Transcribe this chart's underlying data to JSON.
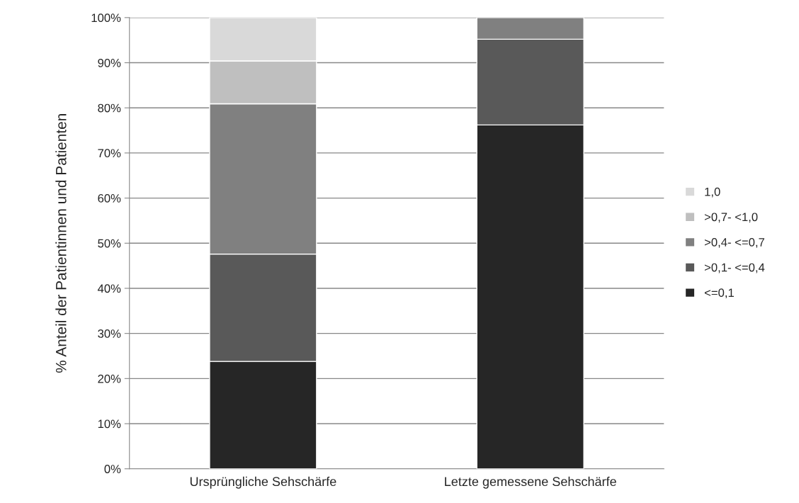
{
  "chart_data": {
    "type": "bar",
    "stacked": true,
    "ylabel": "% Anteil der Patientinnen und Patienten",
    "categories": [
      "Ursprüngliche Sehschärfe",
      "Letzte gemessene Sehschärfe"
    ],
    "series": [
      {
        "name": "<=0,1",
        "color": "#262626",
        "values": [
          23.8,
          76.2
        ]
      },
      {
        "name": ">0,1- <=0,4",
        "color": "#595959",
        "values": [
          23.8,
          19.0
        ]
      },
      {
        "name": ">0,4- <=0,7",
        "color": "#808080",
        "values": [
          33.3,
          4.8
        ]
      },
      {
        "name": ">0,7- <1,0",
        "color": "#bfbfbf",
        "values": [
          9.5,
          null
        ]
      },
      {
        "name": "1,0",
        "color": "#d9d9d9",
        "values": [
          9.6,
          null
        ]
      }
    ],
    "ylim": [
      0,
      100
    ],
    "yticks": [
      {
        "value": 0,
        "label": "0%"
      },
      {
        "value": 10,
        "label": "10%"
      },
      {
        "value": 20,
        "label": "20%"
      },
      {
        "value": 30,
        "label": "30%"
      },
      {
        "value": 40,
        "label": "40%"
      },
      {
        "value": 50,
        "label": "50%"
      },
      {
        "value": 60,
        "label": "60%"
      },
      {
        "value": 70,
        "label": "70%"
      },
      {
        "value": 80,
        "label": "80%"
      },
      {
        "value": 90,
        "label": "90%"
      },
      {
        "value": 100,
        "label": "100%"
      }
    ],
    "grid": "y",
    "legend": "right"
  }
}
